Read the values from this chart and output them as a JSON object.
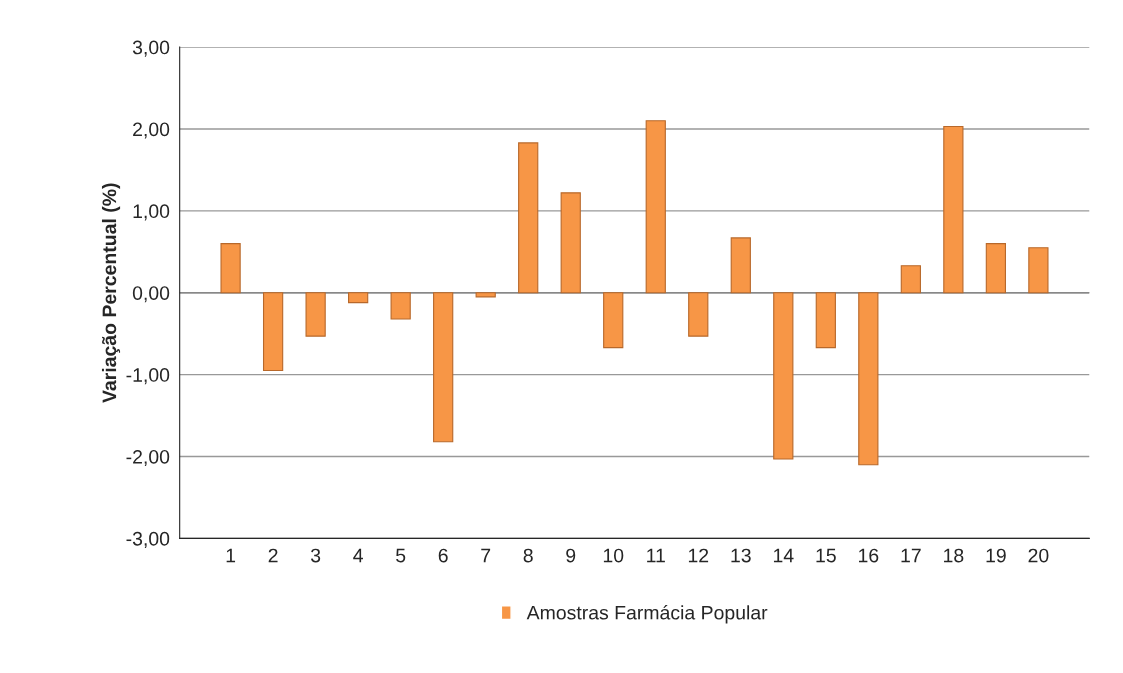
{
  "chart_data": {
    "type": "bar",
    "ylabel": "Variação Percentual (%)",
    "categories": [
      "1",
      "2",
      "3",
      "4",
      "5",
      "6",
      "7",
      "8",
      "9",
      "10",
      "11",
      "12",
      "13",
      "14",
      "15",
      "16",
      "17",
      "18",
      "19",
      "20"
    ],
    "series": [
      {
        "name": "Amostras Farmácia Popular",
        "color": "#f79646",
        "values": [
          0.6,
          -0.95,
          -0.53,
          -0.12,
          -0.32,
          -1.82,
          -0.05,
          1.83,
          1.22,
          -0.67,
          2.1,
          -0.53,
          0.67,
          -2.03,
          -0.67,
          -2.1,
          0.33,
          2.03,
          0.6,
          0.55
        ]
      }
    ],
    "ylim": [
      -3,
      3
    ],
    "yticks": [
      {
        "value": -3,
        "label": "-3,00"
      },
      {
        "value": -2,
        "label": "-2,00"
      },
      {
        "value": -1,
        "label": "-1,00"
      },
      {
        "value": 0,
        "label": "0,00"
      },
      {
        "value": 1,
        "label": "1,00"
      },
      {
        "value": 2,
        "label": "2,00"
      },
      {
        "value": 3,
        "label": "3,00"
      }
    ],
    "grid": "y",
    "legend": "bottom"
  }
}
